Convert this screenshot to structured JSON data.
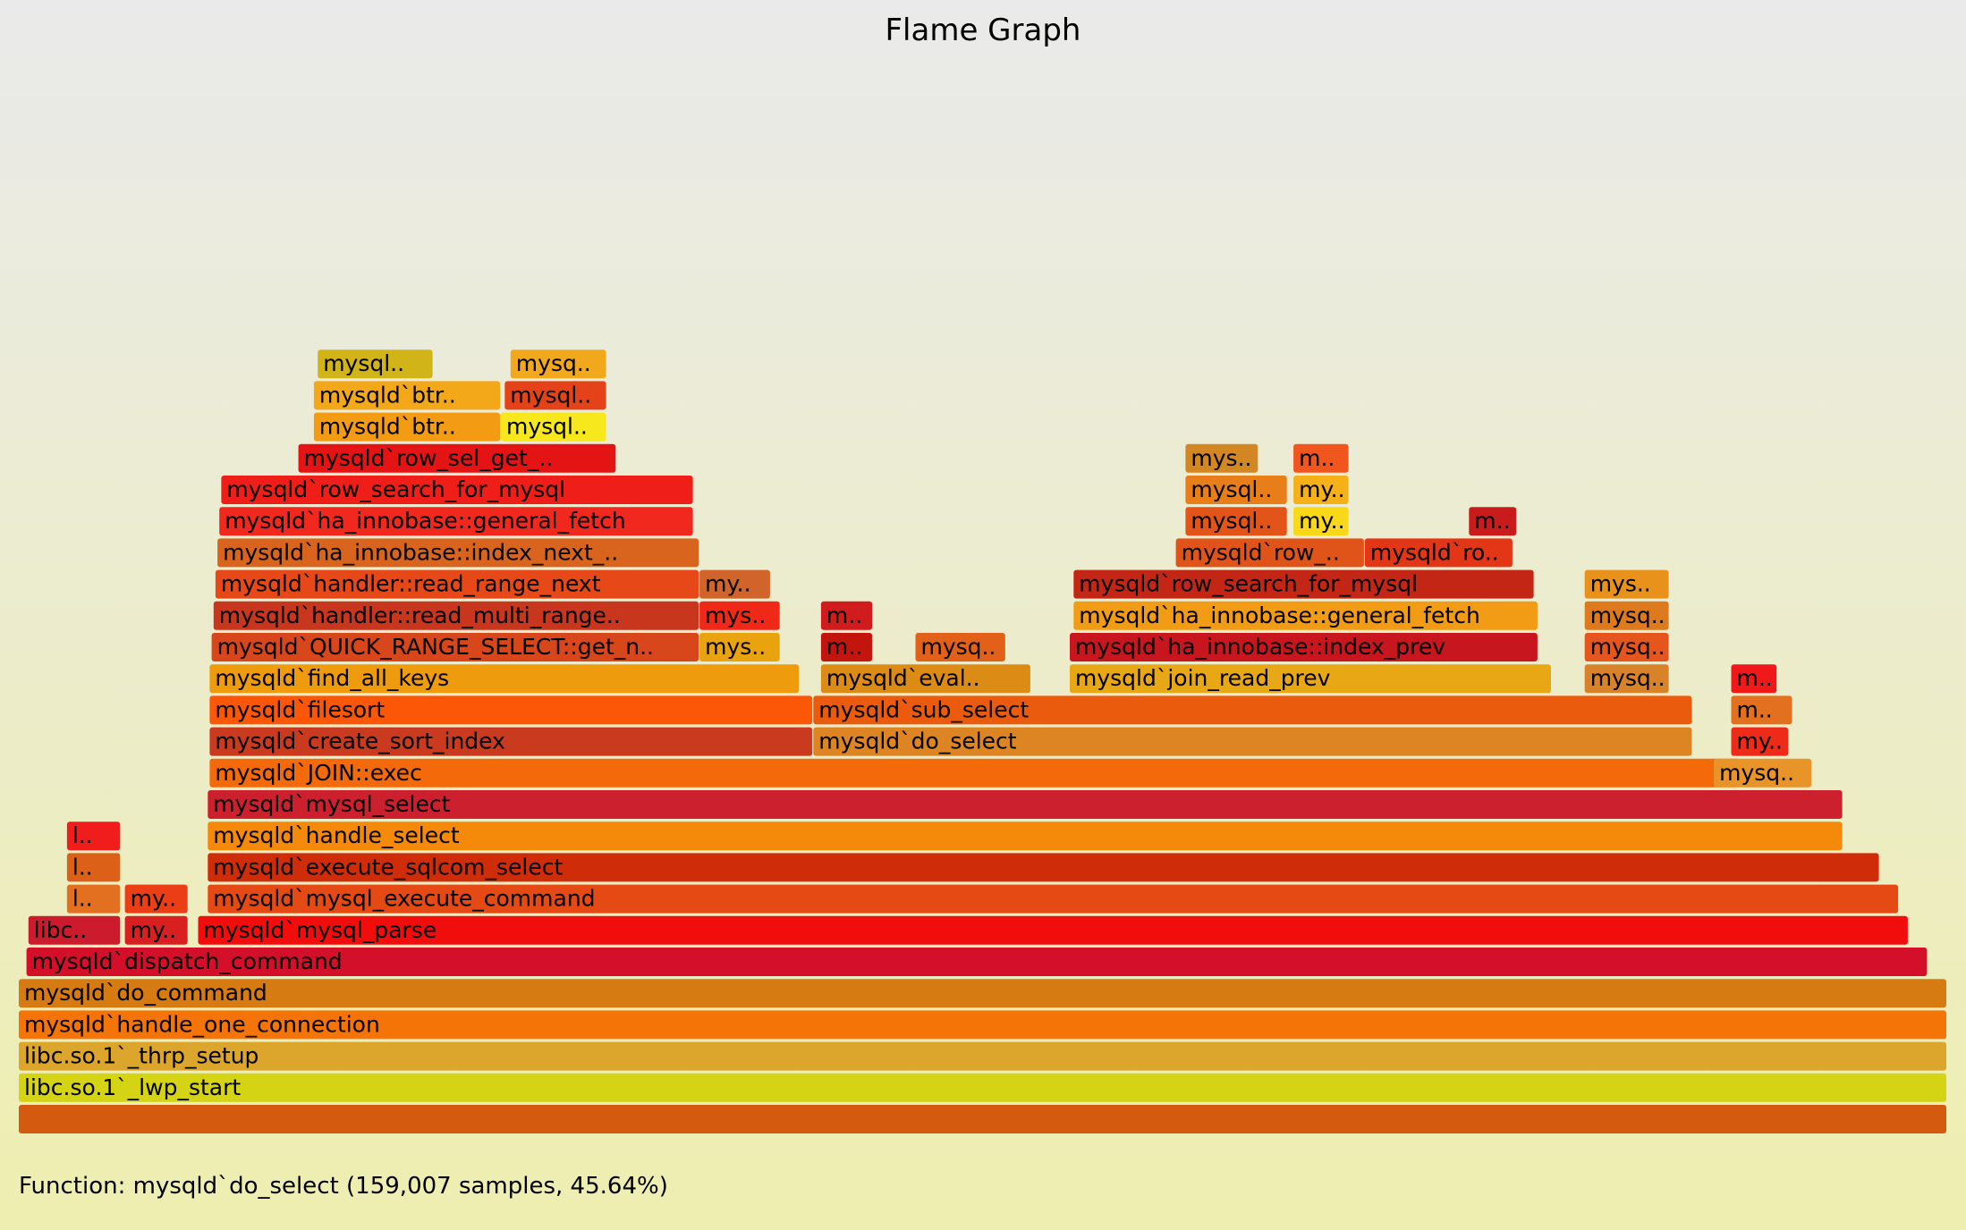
{
  "title": "Flame Graph",
  "detail": "Function: mysqld`do_select (159,007 samples, 45.64%)",
  "chart_data": {
    "type": "flamegraph",
    "title": "Flame Graph",
    "total_range": [
      0,
      1000
    ],
    "frames": [
      {
        "label": "",
        "start": 0,
        "end": 1000,
        "depth": 0,
        "color": "#d35a0f"
      },
      {
        "label": "libc.so.1`_lwp_start",
        "start": 0,
        "end": 1000,
        "depth": 1,
        "color": "#d4d414"
      },
      {
        "label": "libc.so.1`_thrp_setup",
        "start": 0,
        "end": 1000,
        "depth": 2,
        "color": "#dca52c"
      },
      {
        "label": "mysqld`handle_one_connection",
        "start": 0,
        "end": 1000,
        "depth": 3,
        "color": "#f47408"
      },
      {
        "label": "mysqld`do_command",
        "start": 0,
        "end": 1000,
        "depth": 4,
        "color": "#d57b12"
      },
      {
        "label": "mysqld`dispatch_command",
        "start": 4,
        "end": 990,
        "depth": 5,
        "color": "#d40f2a"
      },
      {
        "label": "libc..",
        "start": 5,
        "end": 53,
        "depth": 6,
        "color": "#cc1b2c"
      },
      {
        "label": "my..",
        "start": 55,
        "end": 88,
        "depth": 6,
        "color": "#d82020"
      },
      {
        "label": "mysqld`mysql_parse",
        "start": 93,
        "end": 980,
        "depth": 6,
        "color": "#f20d0d"
      },
      {
        "label": "l..",
        "start": 25,
        "end": 53,
        "depth": 7,
        "color": "#e37020"
      },
      {
        "label": "my..",
        "start": 55,
        "end": 88,
        "depth": 7,
        "color": "#ec3e16"
      },
      {
        "label": "mysqld`mysql_execute_command",
        "start": 98,
        "end": 975,
        "depth": 7,
        "color": "#e54a14"
      },
      {
        "label": "l..",
        "start": 25,
        "end": 53,
        "depth": 8,
        "color": "#dc6018"
      },
      {
        "label": "mysqld`execute_sqlcom_select",
        "start": 98,
        "end": 965,
        "depth": 8,
        "color": "#cf2d0a"
      },
      {
        "label": "l..",
        "start": 25,
        "end": 53,
        "depth": 9,
        "color": "#f11d1d"
      },
      {
        "label": "mysqld`handle_select",
        "start": 98,
        "end": 946,
        "depth": 9,
        "color": "#f58a0a"
      },
      {
        "label": "mysqld`mysql_select",
        "start": 98,
        "end": 946,
        "depth": 10,
        "color": "#cc202e"
      },
      {
        "label": "mysqld`JOIN::exec",
        "start": 99,
        "end": 893,
        "depth": 11,
        "color": "#f46a0a"
      },
      {
        "label": "mysqld`create_sort_index",
        "start": 99,
        "end": 412,
        "depth": 12,
        "color": "#c93a1e"
      },
      {
        "label": "mysqld`do_select",
        "start": 412,
        "end": 868,
        "depth": 12,
        "color": "#dc8522"
      },
      {
        "label": "mysqld`filesort",
        "start": 99,
        "end": 412,
        "depth": 13,
        "color": "#fb5706"
      },
      {
        "label": "mysqld`sub_select",
        "start": 412,
        "end": 868,
        "depth": 13,
        "color": "#ea5b0e"
      },
      {
        "label": "mysqld`find_all_keys",
        "start": 99,
        "end": 405,
        "depth": 14,
        "color": "#ee9b0e"
      },
      {
        "label": "mysqld`eval..",
        "start": 416,
        "end": 525,
        "depth": 14,
        "color": "#dc8c14"
      },
      {
        "label": "mysqld`join_read_prev",
        "start": 545,
        "end": 795,
        "depth": 14,
        "color": "#e8a714"
      },
      {
        "label": "mysqld`QUICK_RANGE_SELECT::get_n..",
        "start": 100,
        "end": 353,
        "depth": 15,
        "color": "#d8471c"
      },
      {
        "label": "mys..",
        "start": 353,
        "end": 395,
        "depth": 15,
        "color": "#e9a30e"
      },
      {
        "label": "m..",
        "start": 416,
        "end": 443,
        "depth": 15,
        "color": "#c1150d"
      },
      {
        "label": "mysq..",
        "start": 465,
        "end": 512,
        "depth": 15,
        "color": "#e26118"
      },
      {
        "label": "mysqld`ha_innobase::index_prev",
        "start": 545,
        "end": 788,
        "depth": 15,
        "color": "#c8161e"
      },
      {
        "label": "mysqld`handler::read_multi_range..",
        "start": 101,
        "end": 353,
        "depth": 16,
        "color": "#c8361e"
      },
      {
        "label": "mys..",
        "start": 353,
        "end": 395,
        "depth": 16,
        "color": "#f02818"
      },
      {
        "label": "m..",
        "start": 416,
        "end": 443,
        "depth": 16,
        "color": "#d01c1c"
      },
      {
        "label": "mysqld`ha_innobase::general_fetch",
        "start": 547,
        "end": 788,
        "depth": 16,
        "color": "#f29b14"
      },
      {
        "label": "mysqld`handler::read_range_next",
        "start": 102,
        "end": 353,
        "depth": 17,
        "color": "#e74818"
      },
      {
        "label": "my..",
        "start": 353,
        "end": 390,
        "depth": 17,
        "color": "#d0642a"
      },
      {
        "label": "mysqld`row_search_for_mysql",
        "start": 547,
        "end": 786,
        "depth": 17,
        "color": "#c42616"
      },
      {
        "label": "mysqld`ha_innobase::index_next_..",
        "start": 103,
        "end": 353,
        "depth": 18,
        "color": "#d8641e"
      },
      {
        "label": "mysqld`row_..",
        "start": 600,
        "end": 698,
        "depth": 18,
        "color": "#e0541a"
      },
      {
        "label": "mysqld`ro..",
        "start": 698,
        "end": 775,
        "depth": 18,
        "color": "#e33616"
      },
      {
        "label": "mysqld`ha_innobase::general_fetch",
        "start": 104,
        "end": 350,
        "depth": 19,
        "color": "#f0281e"
      },
      {
        "label": "mysqld`row_search_for_mysql",
        "start": 105,
        "end": 350,
        "depth": 20,
        "color": "#f01e18"
      },
      {
        "label": "mysqld`row_sel_get_..",
        "start": 145,
        "end": 310,
        "depth": 21,
        "color": "#e41414"
      },
      {
        "label": "mysqld`btr..",
        "start": 153,
        "end": 250,
        "depth": 22,
        "color": "#f49b14"
      },
      {
        "label": "mysql..",
        "start": 250,
        "end": 305,
        "depth": 22,
        "color": "#f6e81c"
      },
      {
        "label": "mysqld`btr..",
        "start": 153,
        "end": 250,
        "depth": 23,
        "color": "#f2a818"
      },
      {
        "label": "mysql..",
        "start": 252,
        "end": 305,
        "depth": 23,
        "color": "#e44218"
      },
      {
        "label": "mysql..",
        "start": 155,
        "end": 215,
        "depth": 24,
        "color": "#d0b418"
      },
      {
        "label": "mysq..",
        "start": 255,
        "end": 305,
        "depth": 24,
        "color": "#f2a81c"
      },
      {
        "label": "mys..",
        "start": 605,
        "end": 643,
        "depth": 21,
        "color": "#d28722"
      },
      {
        "label": "m..",
        "start": 661,
        "end": 690,
        "depth": 21,
        "color": "#f0561e"
      },
      {
        "label": "mysql..",
        "start": 605,
        "end": 658,
        "depth": 20,
        "color": "#e87e1a"
      },
      {
        "label": "my..",
        "start": 661,
        "end": 690,
        "depth": 20,
        "color": "#f6b018"
      },
      {
        "label": "mysql..",
        "start": 605,
        "end": 658,
        "depth": 19,
        "color": "#e25418"
      },
      {
        "label": "my..",
        "start": 661,
        "end": 690,
        "depth": 19,
        "color": "#f8d818"
      },
      {
        "label": "m..",
        "start": 752,
        "end": 777,
        "depth": 19,
        "color": "#c81c1c"
      },
      {
        "label": "mys..",
        "start": 812,
        "end": 856,
        "depth": 17,
        "color": "#e8921c"
      },
      {
        "label": "mysq..",
        "start": 812,
        "end": 856,
        "depth": 16,
        "color": "#de7a1e"
      },
      {
        "label": "mysq..",
        "start": 812,
        "end": 856,
        "depth": 15,
        "color": "#e4561e"
      },
      {
        "label": "mysq..",
        "start": 812,
        "end": 856,
        "depth": 14,
        "color": "#d8822a"
      },
      {
        "label": "m..",
        "start": 888,
        "end": 912,
        "depth": 14,
        "color": "#f01818"
      },
      {
        "label": "m..",
        "start": 888,
        "end": 920,
        "depth": 13,
        "color": "#e2701e"
      },
      {
        "label": "my..",
        "start": 888,
        "end": 918,
        "depth": 12,
        "color": "#ee2a18"
      },
      {
        "label": "mysq..",
        "start": 879,
        "end": 930,
        "depth": 11,
        "color": "#e89428"
      }
    ]
  }
}
